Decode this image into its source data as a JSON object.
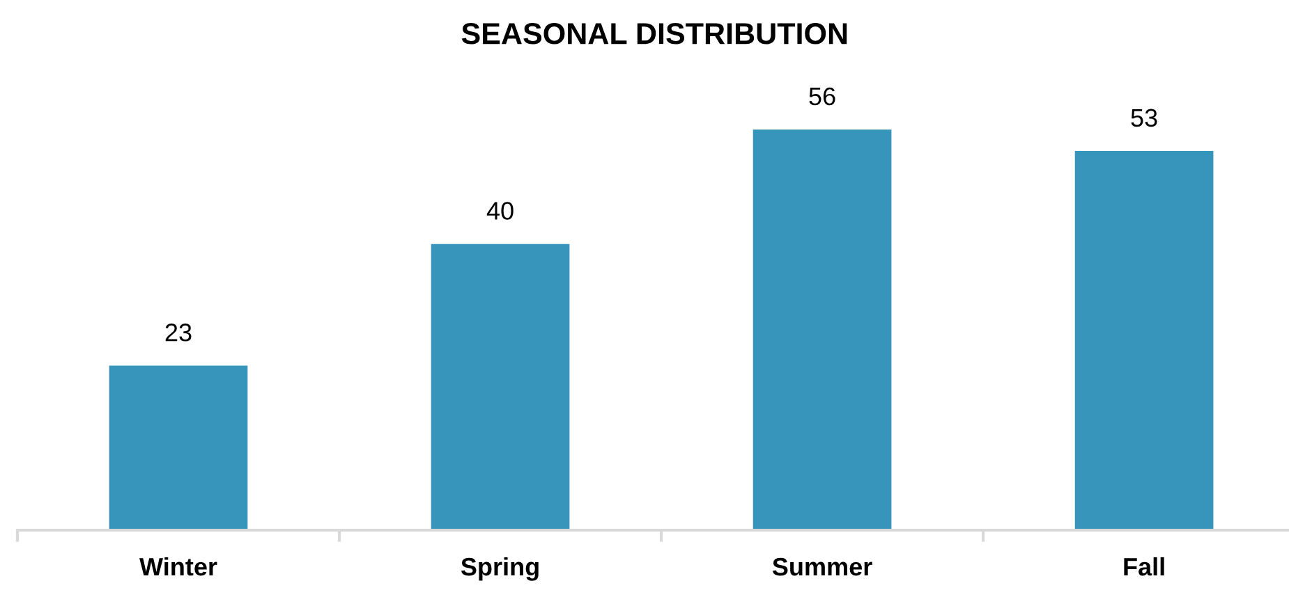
{
  "chart_data": {
    "type": "bar",
    "title": "SEASONAL DISTRIBUTION",
    "categories": [
      "Winter",
      "Spring",
      "Summer",
      "Fall"
    ],
    "values": [
      23,
      40,
      56,
      53
    ],
    "color": "#3795bc",
    "data_labels": true
  }
}
